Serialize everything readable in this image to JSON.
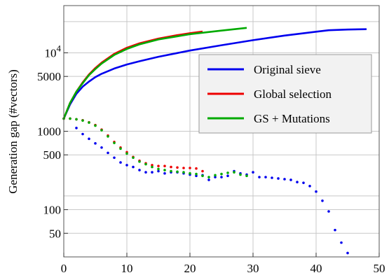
{
  "chart_data": {
    "type": "line",
    "title": "",
    "xlabel": "",
    "ylabel": "Generation gap (#vectors)",
    "xlim": [
      0,
      50
    ],
    "ylim": [
      25,
      40000
    ],
    "yscale": "log",
    "grid": true,
    "legend_position": "upper-right",
    "x_ticks": [
      {
        "value": 0,
        "label": "0"
      },
      {
        "value": 10,
        "label": "10"
      },
      {
        "value": 20,
        "label": "20"
      },
      {
        "value": 30,
        "label": "30"
      },
      {
        "value": 40,
        "label": "40"
      },
      {
        "value": 50,
        "label": "50"
      }
    ],
    "y_ticks": [
      {
        "value": 50,
        "label": "50"
      },
      {
        "value": 100,
        "label": "100"
      },
      {
        "value": 500,
        "label": "500"
      },
      {
        "value": 1000,
        "label": "1000"
      },
      {
        "value": 5000,
        "label": "5000"
      }
    ],
    "y_power_label": {
      "value": 10000,
      "base": "10",
      "exp": "4"
    },
    "y_gridlines": [
      50,
      100,
      150,
      500,
      1000,
      5000,
      10000,
      25000
    ],
    "series": [
      {
        "name": "Original sieve",
        "style": "line",
        "color": "#0000ee",
        "x": [
          0,
          1,
          2,
          3,
          4,
          5,
          6,
          8,
          10,
          12,
          15,
          20,
          25,
          30,
          35,
          40,
          42,
          45,
          48
        ],
        "y": [
          1450,
          2200,
          3000,
          3700,
          4300,
          4900,
          5400,
          6300,
          7100,
          7800,
          8900,
          10700,
          12500,
          14500,
          16600,
          18600,
          19400,
          19800,
          20000
        ]
      },
      {
        "name": "Global selection",
        "style": "line",
        "color": "#ee0000",
        "x": [
          0,
          1,
          2,
          3,
          4,
          5,
          6,
          8,
          10,
          12,
          15,
          18,
          20,
          22
        ],
        "y": [
          1450,
          2300,
          3200,
          4200,
          5300,
          6400,
          7500,
          9700,
          11600,
          13200,
          15200,
          16800,
          17800,
          18700
        ]
      },
      {
        "name": "GS + Mutations",
        "style": "line",
        "color": "#00aa00",
        "x": [
          0,
          1,
          2,
          3,
          4,
          5,
          6,
          8,
          10,
          12,
          15,
          20,
          25,
          29
        ],
        "y": [
          1450,
          2300,
          3200,
          4100,
          5200,
          6200,
          7300,
          9400,
          11200,
          12800,
          14800,
          17300,
          19200,
          20800
        ]
      },
      {
        "name": "",
        "style": "dots",
        "color": "#0000ee",
        "x": [
          2,
          3,
          4,
          5,
          6,
          7,
          8,
          9,
          10,
          11,
          12,
          13,
          14,
          15,
          16,
          17,
          18,
          19,
          20,
          21,
          22,
          23,
          24,
          25,
          26,
          27,
          28,
          29,
          30,
          31,
          32,
          33,
          34,
          35,
          36,
          37,
          38,
          39,
          40,
          41,
          42,
          43,
          44,
          45
        ],
        "y": [
          1100,
          920,
          800,
          700,
          620,
          530,
          460,
          400,
          370,
          350,
          320,
          300,
          300,
          310,
          290,
          300,
          300,
          290,
          280,
          270,
          275,
          240,
          260,
          260,
          270,
          310,
          290,
          280,
          300,
          260,
          260,
          255,
          250,
          245,
          240,
          225,
          220,
          200,
          170,
          130,
          95,
          55,
          38,
          28
        ]
      },
      {
        "name": "",
        "style": "dots",
        "color": "#ee0000",
        "x": [
          0,
          1,
          2,
          3,
          4,
          5,
          6,
          7,
          8,
          9,
          10,
          11,
          12,
          13,
          14,
          15,
          16,
          17,
          18,
          19,
          20,
          21,
          22
        ],
        "y": [
          1450,
          1450,
          1420,
          1380,
          1300,
          1200,
          1050,
          880,
          730,
          620,
          540,
          470,
          420,
          390,
          370,
          360,
          360,
          350,
          345,
          340,
          340,
          335,
          310
        ]
      },
      {
        "name": "",
        "style": "dots",
        "color": "#00aa00",
        "x": [
          0,
          1,
          2,
          3,
          4,
          5,
          6,
          7,
          8,
          9,
          10,
          11,
          12,
          13,
          14,
          15,
          16,
          17,
          18,
          19,
          20,
          21,
          22,
          23,
          24,
          25,
          26,
          27,
          28,
          29
        ],
        "y": [
          1450,
          1450,
          1420,
          1370,
          1290,
          1180,
          1030,
          860,
          710,
          600,
          520,
          460,
          410,
          380,
          350,
          330,
          320,
          310,
          305,
          300,
          290,
          285,
          270,
          260,
          275,
          285,
          295,
          300,
          280,
          270
        ]
      }
    ]
  }
}
